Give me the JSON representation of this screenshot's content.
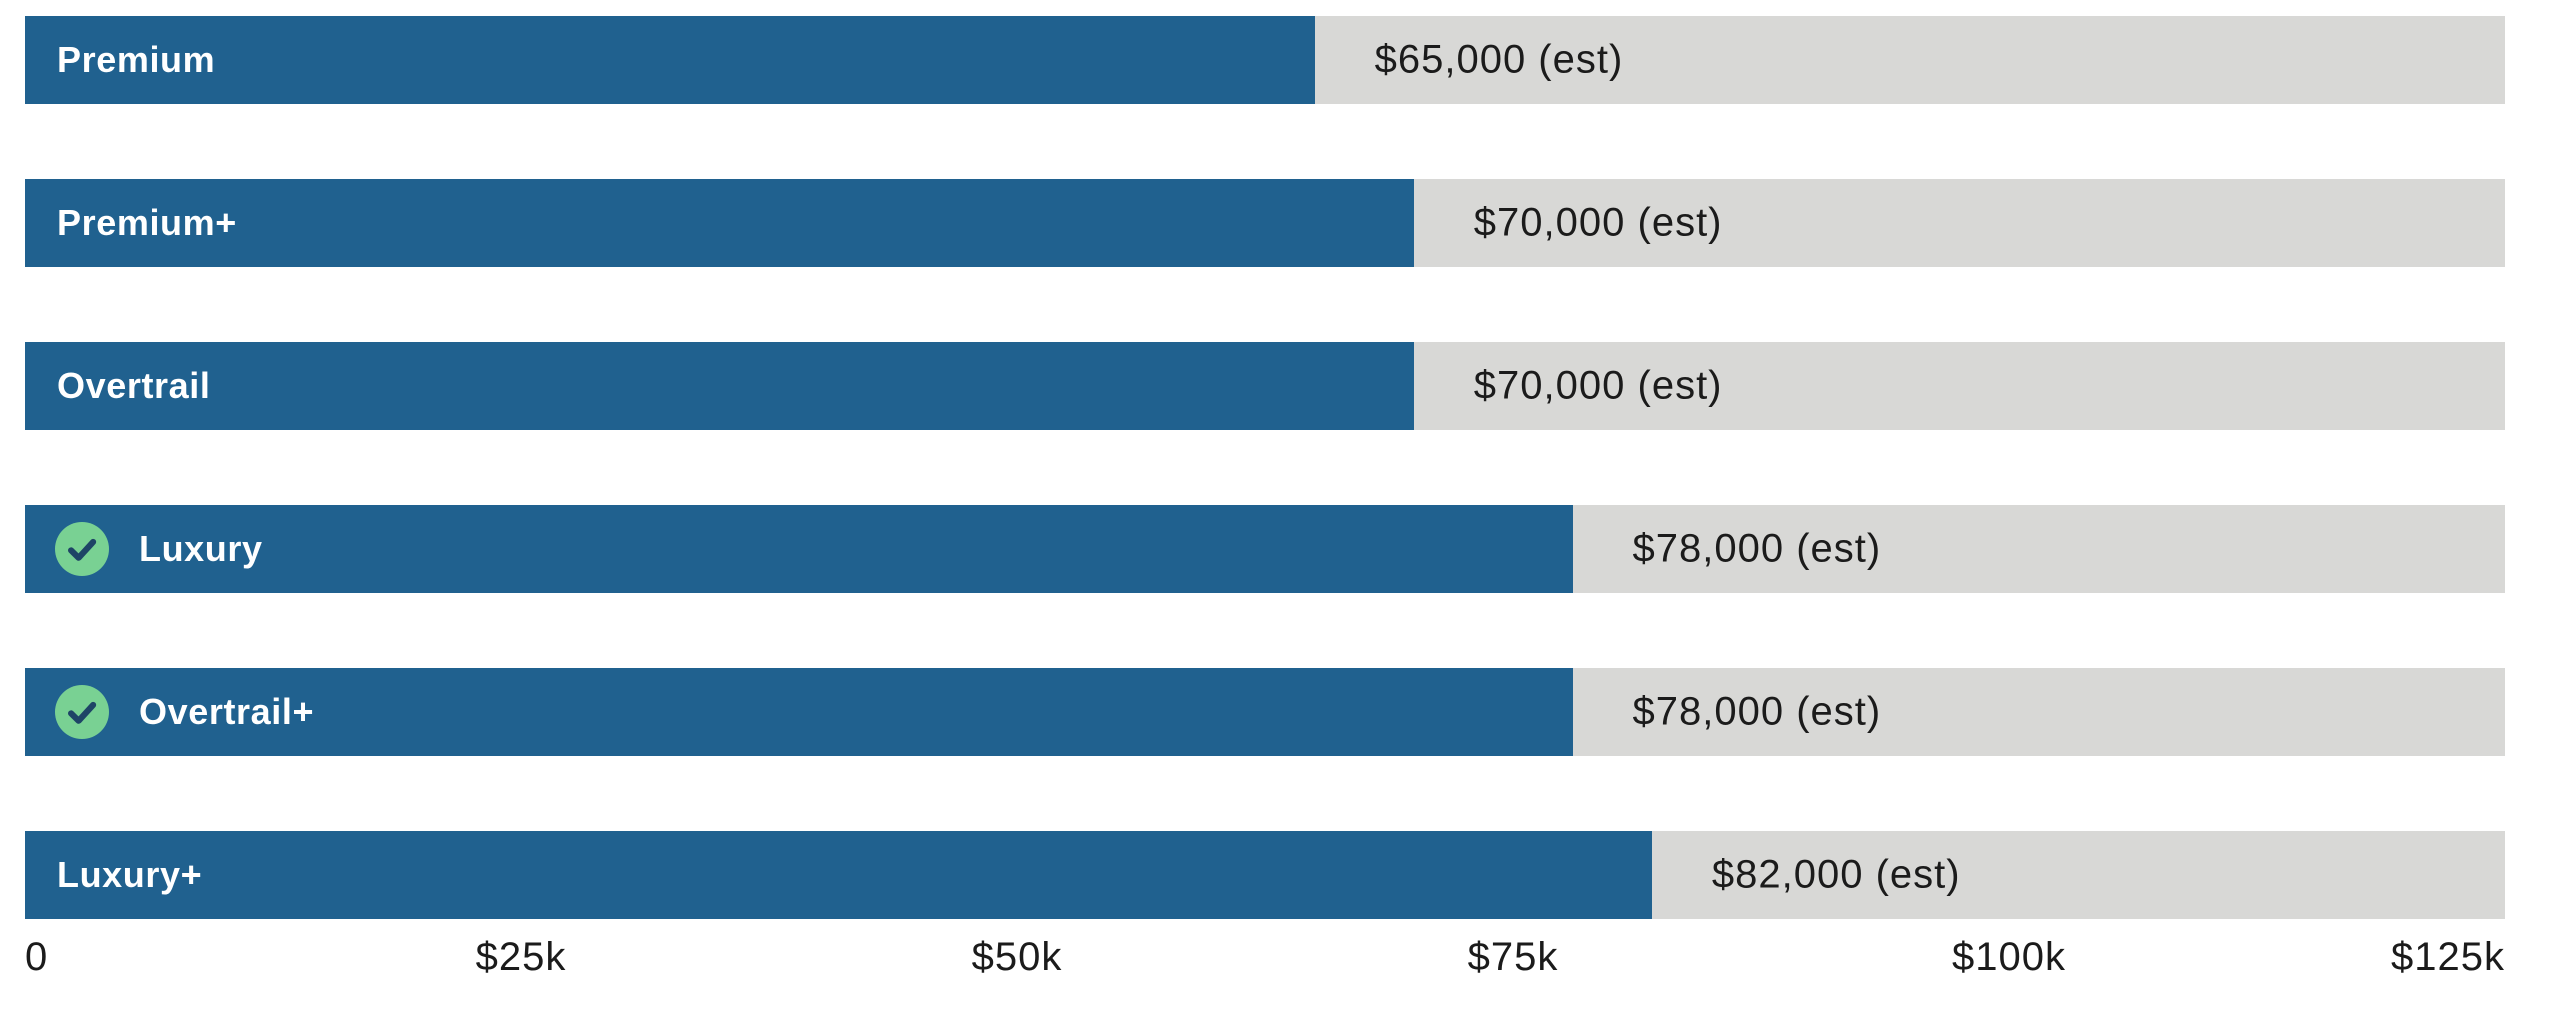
{
  "chart_data": {
    "type": "bar",
    "orientation": "horizontal",
    "title": "",
    "xlabel": "",
    "ylabel": "",
    "categories": [
      "Premium",
      "Premium+",
      "Overtrail",
      "Luxury",
      "Overtrail+",
      "Luxury+"
    ],
    "values": [
      65000,
      70000,
      70000,
      78000,
      78000,
      82000
    ],
    "value_labels": [
      "$65,000 (est)",
      "$70,000 (est)",
      "$70,000 (est)",
      "$78,000 (est)",
      "$78,000 (est)",
      "$82,000 (est)"
    ],
    "selected": [
      false,
      false,
      false,
      true,
      true,
      false
    ],
    "xlim": [
      0,
      125000
    ],
    "x_tick_labels": [
      "0",
      "$25k",
      "$50k",
      "$75k",
      "$100k",
      "$125k"
    ],
    "x_tick_positions_pct": [
      0,
      20,
      40,
      60,
      80,
      100
    ],
    "grid": false,
    "legend": false,
    "colors": {
      "bar_fill": "#20618F",
      "bar_track": "#D8D8D6",
      "bar_label_text": "#FFFFFF",
      "value_text": "#1B1B1B",
      "axis_text": "#1B1B1B",
      "check_circle": "#79D193",
      "check_mark": "#1E4466",
      "background": "#FFFFFF"
    }
  }
}
